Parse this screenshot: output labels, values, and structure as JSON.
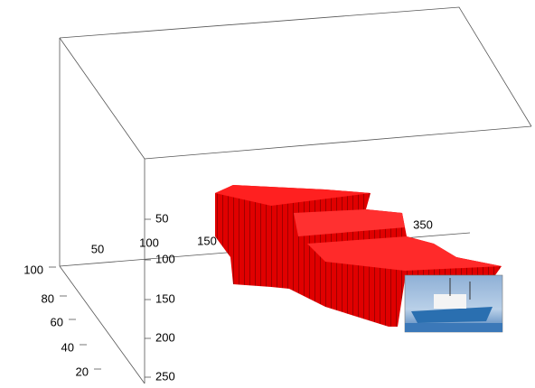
{
  "z_ticks": [
    100,
    80,
    60,
    40,
    20
  ],
  "y_ticks": [
    50,
    100,
    150,
    200,
    250
  ],
  "x_ticks": [
    50,
    100,
    150,
    350
  ]
}
